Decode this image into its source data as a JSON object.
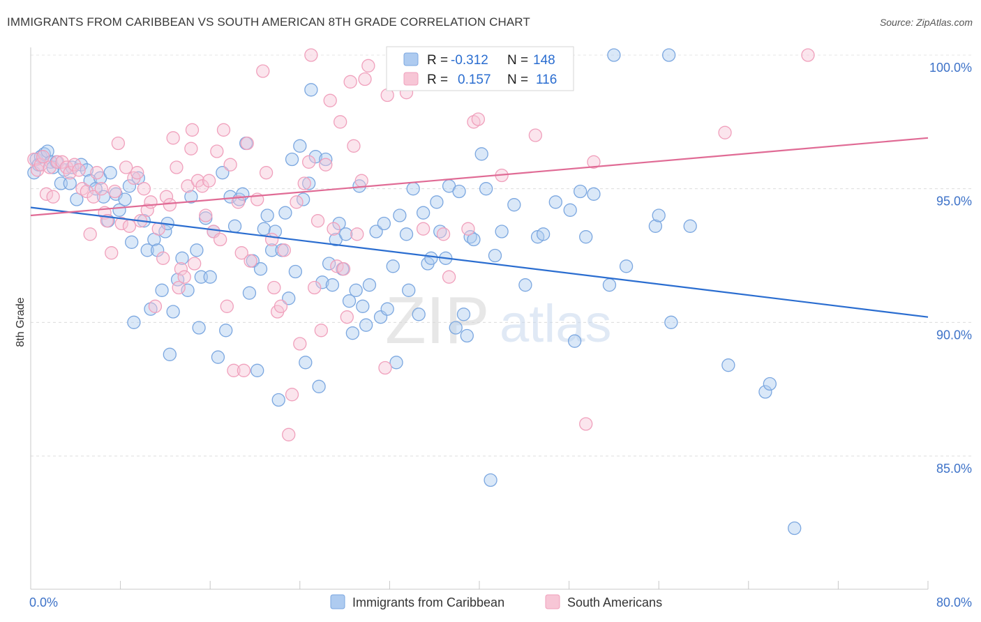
{
  "chart_data": {
    "type": "scatter",
    "title": "IMMIGRANTS FROM CARIBBEAN VS SOUTH AMERICAN 8TH GRADE CORRELATION CHART",
    "source": "Source: ZipAtlas.com",
    "ylabel": "8th Grade",
    "xlabel": "",
    "xlim": [
      0,
      80
    ],
    "ylim": [
      80.5,
      101
    ],
    "x_tick_labels": {
      "left": "0.0%",
      "right": "80.0%"
    },
    "y_ticks": [
      {
        "value": 100,
        "label": "100.0%"
      },
      {
        "value": 95,
        "label": "95.0%"
      },
      {
        "value": 90,
        "label": "90.0%"
      },
      {
        "value": 85,
        "label": "85.0%"
      }
    ],
    "grid": "horizontal-dashed",
    "legend_position": "bottom",
    "watermark": "ZIPatlas",
    "series": [
      {
        "name": "Immigrants from Caribbean",
        "color": "#7ba7e0",
        "fill": "#aecbf0",
        "line_color": "#2a6dd0",
        "R": "-0.312",
        "N": "148",
        "trend": {
          "x": [
            0,
            80
          ],
          "y": [
            94.3,
            90.2
          ]
        },
        "points": [
          [
            0.3,
            95.6
          ],
          [
            0.5,
            96.1
          ],
          [
            0.7,
            95.9
          ],
          [
            0.9,
            96.2
          ],
          [
            1.2,
            96.3
          ],
          [
            1.5,
            96.4
          ],
          [
            1.8,
            96.0
          ],
          [
            2.0,
            95.8
          ],
          [
            2.3,
            96.0
          ],
          [
            2.7,
            95.2
          ],
          [
            3.0,
            95.7
          ],
          [
            3.5,
            95.2
          ],
          [
            3.7,
            95.8
          ],
          [
            4.1,
            94.6
          ],
          [
            4.5,
            95.9
          ],
          [
            5.0,
            95.7
          ],
          [
            5.3,
            95.3
          ],
          [
            5.8,
            95.0
          ],
          [
            6.2,
            95.4
          ],
          [
            6.5,
            94.7
          ],
          [
            6.9,
            93.8
          ],
          [
            7.1,
            95.6
          ],
          [
            7.6,
            94.8
          ],
          [
            7.9,
            94.2
          ],
          [
            8.4,
            94.6
          ],
          [
            8.8,
            95.1
          ],
          [
            9.0,
            93.0
          ],
          [
            9.2,
            90.0
          ],
          [
            9.6,
            95.4
          ],
          [
            10.1,
            93.8
          ],
          [
            10.4,
            92.7
          ],
          [
            10.7,
            90.5
          ],
          [
            11.0,
            93.1
          ],
          [
            11.3,
            92.7
          ],
          [
            11.7,
            91.2
          ],
          [
            12.0,
            93.4
          ],
          [
            12.2,
            93.7
          ],
          [
            12.4,
            88.8
          ],
          [
            12.7,
            90.4
          ],
          [
            13.1,
            91.6
          ],
          [
            13.5,
            92.4
          ],
          [
            14.0,
            91.2
          ],
          [
            14.3,
            94.7
          ],
          [
            14.8,
            92.7
          ],
          [
            15.0,
            89.8
          ],
          [
            15.2,
            91.7
          ],
          [
            15.6,
            93.9
          ],
          [
            16.0,
            91.7
          ],
          [
            16.3,
            93.4
          ],
          [
            16.7,
            88.7
          ],
          [
            17.1,
            95.6
          ],
          [
            17.4,
            89.7
          ],
          [
            17.8,
            94.7
          ],
          [
            18.2,
            93.6
          ],
          [
            18.6,
            94.6
          ],
          [
            18.9,
            94.8
          ],
          [
            19.2,
            96.7
          ],
          [
            19.5,
            91.1
          ],
          [
            19.8,
            92.3
          ],
          [
            20.2,
            88.2
          ],
          [
            20.5,
            92.0
          ],
          [
            20.8,
            93.5
          ],
          [
            21.1,
            94.0
          ],
          [
            21.5,
            92.7
          ],
          [
            21.8,
            93.4
          ],
          [
            22.1,
            87.1
          ],
          [
            22.4,
            92.7
          ],
          [
            22.7,
            94.1
          ],
          [
            23.0,
            90.9
          ],
          [
            23.3,
            96.1
          ],
          [
            23.6,
            91.9
          ],
          [
            24.0,
            96.6
          ],
          [
            24.3,
            94.6
          ],
          [
            24.5,
            88.5
          ],
          [
            24.8,
            95.2
          ],
          [
            25.0,
            98.7
          ],
          [
            25.4,
            96.2
          ],
          [
            25.7,
            87.6
          ],
          [
            26.0,
            91.5
          ],
          [
            26.3,
            96.1
          ],
          [
            26.6,
            92.2
          ],
          [
            26.9,
            91.4
          ],
          [
            27.2,
            93.1
          ],
          [
            27.5,
            93.7
          ],
          [
            27.8,
            92.0
          ],
          [
            28.1,
            93.3
          ],
          [
            28.4,
            90.8
          ],
          [
            28.7,
            89.6
          ],
          [
            29.0,
            91.2
          ],
          [
            29.3,
            95.1
          ],
          [
            29.6,
            90.6
          ],
          [
            29.9,
            89.9
          ],
          [
            30.2,
            91.4
          ],
          [
            30.8,
            93.4
          ],
          [
            31.2,
            90.2
          ],
          [
            31.5,
            93.7
          ],
          [
            31.8,
            90.5
          ],
          [
            32.3,
            92.1
          ],
          [
            32.6,
            88.5
          ],
          [
            32.9,
            94.0
          ],
          [
            33.5,
            93.3
          ],
          [
            33.7,
            91.2
          ],
          [
            34.1,
            95.0
          ],
          [
            34.6,
            90.3
          ],
          [
            35.0,
            94.1
          ],
          [
            35.4,
            92.2
          ],
          [
            35.7,
            92.4
          ],
          [
            36.2,
            94.5
          ],
          [
            36.5,
            93.4
          ],
          [
            37.0,
            92.4
          ],
          [
            37.3,
            95.1
          ],
          [
            37.9,
            89.8
          ],
          [
            38.2,
            94.9
          ],
          [
            38.6,
            90.3
          ],
          [
            38.9,
            89.5
          ],
          [
            39.2,
            93.2
          ],
          [
            39.5,
            93.1
          ],
          [
            40.2,
            96.3
          ],
          [
            40.6,
            95.0
          ],
          [
            41.0,
            84.1
          ],
          [
            41.4,
            92.5
          ],
          [
            42.0,
            93.4
          ],
          [
            43.1,
            94.4
          ],
          [
            44.1,
            91.4
          ],
          [
            45.2,
            93.2
          ],
          [
            45.7,
            93.3
          ],
          [
            46.8,
            94.5
          ],
          [
            48.1,
            94.2
          ],
          [
            48.5,
            89.3
          ],
          [
            49.0,
            94.9
          ],
          [
            49.5,
            93.2
          ],
          [
            50.2,
            94.8
          ],
          [
            51.6,
            91.4
          ],
          [
            52.0,
            100.0
          ],
          [
            53.1,
            92.1
          ],
          [
            55.7,
            93.6
          ],
          [
            56.0,
            94.0
          ],
          [
            56.9,
            100.0
          ],
          [
            57.1,
            90.0
          ],
          [
            58.8,
            93.6
          ],
          [
            62.2,
            88.4
          ],
          [
            65.5,
            87.4
          ],
          [
            65.9,
            87.7
          ],
          [
            68.1,
            82.3
          ]
        ]
      },
      {
        "name": "South Americans",
        "color": "#f0a0bc",
        "fill": "#f7c6d6",
        "line_color": "#e06b95",
        "R": "0.157",
        "N": "116",
        "trend": {
          "x": [
            0,
            80
          ],
          "y": [
            94.0,
            96.9
          ]
        },
        "points": [
          [
            0.3,
            96.1
          ],
          [
            0.6,
            95.7
          ],
          [
            0.9,
            95.9
          ],
          [
            1.1,
            96.2
          ],
          [
            1.4,
            94.8
          ],
          [
            1.7,
            95.8
          ],
          [
            2.0,
            94.7
          ],
          [
            2.4,
            96.0
          ],
          [
            2.8,
            96.0
          ],
          [
            3.2,
            95.8
          ],
          [
            3.5,
            95.6
          ],
          [
            3.9,
            95.9
          ],
          [
            4.3,
            95.7
          ],
          [
            4.6,
            95.0
          ],
          [
            5.0,
            94.9
          ],
          [
            5.3,
            93.3
          ],
          [
            5.6,
            94.7
          ],
          [
            5.9,
            95.6
          ],
          [
            6.3,
            95.0
          ],
          [
            6.6,
            94.1
          ],
          [
            6.8,
            93.8
          ],
          [
            7.2,
            92.6
          ],
          [
            7.5,
            94.9
          ],
          [
            7.8,
            96.7
          ],
          [
            8.1,
            93.7
          ],
          [
            8.5,
            95.8
          ],
          [
            8.8,
            93.6
          ],
          [
            9.2,
            95.4
          ],
          [
            9.5,
            95.6
          ],
          [
            9.8,
            93.8
          ],
          [
            10.1,
            95.0
          ],
          [
            10.4,
            94.2
          ],
          [
            10.7,
            94.5
          ],
          [
            11.1,
            90.6
          ],
          [
            11.4,
            93.5
          ],
          [
            11.8,
            92.4
          ],
          [
            12.1,
            94.7
          ],
          [
            12.4,
            94.4
          ],
          [
            12.7,
            96.9
          ],
          [
            13.0,
            95.8
          ],
          [
            13.2,
            91.3
          ],
          [
            13.4,
            92.0
          ],
          [
            13.7,
            91.7
          ],
          [
            14.0,
            95.1
          ],
          [
            14.3,
            96.5
          ],
          [
            14.4,
            97.2
          ],
          [
            14.6,
            92.2
          ],
          [
            14.9,
            95.3
          ],
          [
            15.3,
            95.1
          ],
          [
            15.6,
            94.0
          ],
          [
            15.9,
            95.3
          ],
          [
            16.3,
            93.4
          ],
          [
            16.6,
            96.4
          ],
          [
            16.9,
            93.1
          ],
          [
            17.2,
            97.2
          ],
          [
            17.5,
            90.6
          ],
          [
            17.8,
            95.9
          ],
          [
            18.1,
            88.2
          ],
          [
            18.5,
            94.5
          ],
          [
            18.8,
            92.6
          ],
          [
            19.0,
            88.2
          ],
          [
            19.3,
            96.7
          ],
          [
            19.6,
            92.3
          ],
          [
            20.2,
            94.6
          ],
          [
            20.7,
            99.4
          ],
          [
            21.0,
            95.6
          ],
          [
            21.5,
            93.1
          ],
          [
            21.7,
            91.3
          ],
          [
            22.0,
            90.4
          ],
          [
            22.3,
            90.6
          ],
          [
            22.6,
            92.7
          ],
          [
            23.0,
            85.8
          ],
          [
            23.3,
            87.3
          ],
          [
            23.7,
            94.5
          ],
          [
            24.0,
            89.2
          ],
          [
            24.4,
            95.2
          ],
          [
            24.8,
            96.0
          ],
          [
            25.0,
            100.0
          ],
          [
            25.3,
            91.3
          ],
          [
            25.6,
            93.8
          ],
          [
            25.9,
            89.7
          ],
          [
            26.3,
            95.9
          ],
          [
            26.7,
            98.3
          ],
          [
            27.0,
            93.5
          ],
          [
            27.3,
            92.1
          ],
          [
            27.6,
            97.5
          ],
          [
            27.9,
            92.0
          ],
          [
            28.2,
            90.2
          ],
          [
            28.5,
            99.0
          ],
          [
            28.8,
            96.6
          ],
          [
            29.1,
            93.3
          ],
          [
            29.5,
            95.3
          ],
          [
            29.8,
            99.1
          ],
          [
            30.1,
            99.6
          ],
          [
            31.6,
            88.3
          ],
          [
            31.8,
            98.5
          ],
          [
            32.5,
            99.8
          ],
          [
            33.5,
            98.6
          ],
          [
            34.4,
            99.9
          ],
          [
            35.0,
            93.5
          ],
          [
            36.8,
            93.3
          ],
          [
            37.3,
            91.7
          ],
          [
            38.5,
            100.0
          ],
          [
            39.0,
            93.5
          ],
          [
            39.5,
            97.5
          ],
          [
            39.9,
            97.6
          ],
          [
            42.0,
            95.5
          ],
          [
            45.0,
            97.0
          ],
          [
            49.5,
            86.2
          ],
          [
            50.2,
            96.0
          ],
          [
            61.9,
            97.1
          ],
          [
            69.3,
            100.0
          ]
        ]
      }
    ]
  }
}
